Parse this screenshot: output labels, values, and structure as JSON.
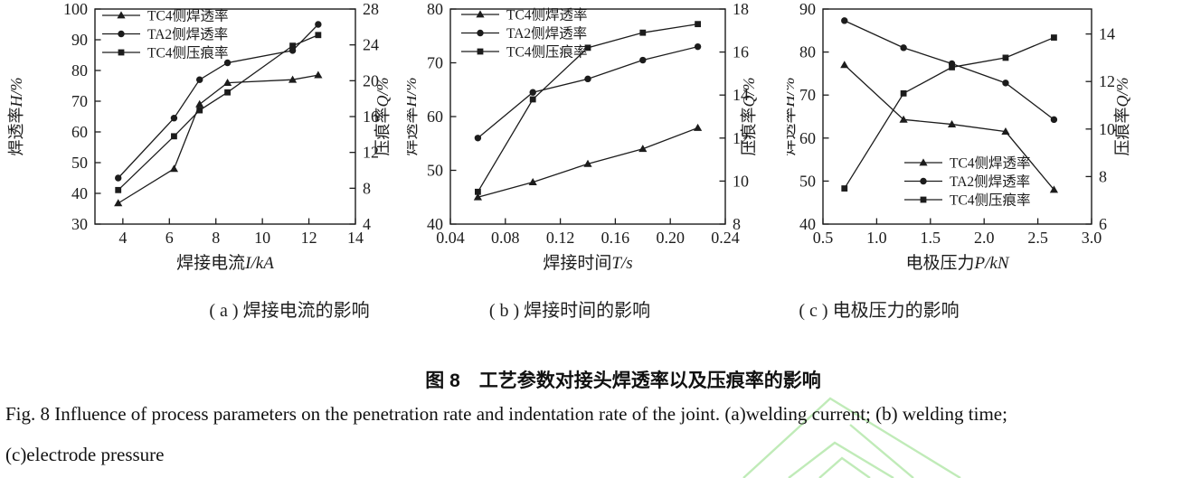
{
  "figure": {
    "subcaptions": {
      "a": "( a ) 焊接电流的影响",
      "b": "( b ) 焊接时间的影响",
      "c": "( c ) 电极压力的影响"
    },
    "title_cn": "图 8　工艺参数对接头焊透率以及压痕率的影响",
    "caption_en_line1": "Fig. 8    Influence of process parameters on the penetration rate and indentation rate of the joint. (a)welding current; (b) welding time;",
    "caption_en_line2": "(c)electrode pressure"
  },
  "ink_color": "#1c1c1c",
  "watermark": {
    "color": "#b5e8ac"
  },
  "chart_data": [
    {
      "panel": "a",
      "type": "line",
      "title": "(a) 焊接电流的影响",
      "xlabel": "焊接电流I/kA",
      "ylabel_left": "焊透率H/%",
      "ylabel_right": "压痕率Q/%",
      "xlim": [
        2.8,
        14
      ],
      "xticks": [
        4,
        6,
        8,
        10,
        12,
        14
      ],
      "xtick_labels": [
        "4",
        "6",
        "8",
        "10",
        "12",
        "14"
      ],
      "ylim_left": [
        30,
        100
      ],
      "yticks_left": [
        30,
        40,
        50,
        60,
        70,
        80,
        90,
        100
      ],
      "ylim_right": [
        4,
        28
      ],
      "yticks_right": [
        4,
        8,
        12,
        16,
        20,
        24,
        28
      ],
      "grid": false,
      "legend_position": "top-left",
      "x": [
        3.8,
        6.2,
        7.3,
        8.5,
        11.3,
        12.4
      ],
      "series": [
        {
          "name": "TC4侧焊透率",
          "marker": "triangle",
          "axis": "left",
          "values": [
            36.8,
            48,
            69,
            76,
            77,
            78.5
          ]
        },
        {
          "name": "TA2侧焊透率",
          "marker": "circle",
          "axis": "left",
          "values": [
            45,
            64.5,
            77,
            82.5,
            86.5,
            95
          ]
        },
        {
          "name": "TC4侧压痕率",
          "marker": "square",
          "axis": "right",
          "values": [
            7.8,
            13.8,
            16.7,
            18.7,
            23.9,
            25.1
          ]
        }
      ]
    },
    {
      "panel": "b",
      "type": "line",
      "title": "(b) 焊接时间的影响",
      "xlabel": "焊接时间T/s",
      "ylabel_left": "焊透率H/%",
      "ylabel_right": "压痕率Q/%",
      "xlim": [
        0.04,
        0.24
      ],
      "xticks": [
        0.04,
        0.08,
        0.12,
        0.16,
        0.2,
        0.24
      ],
      "xtick_labels": [
        "0.04",
        "0.08",
        "0.12",
        "0.16",
        "0.20",
        "0.24"
      ],
      "ylim_left": [
        40,
        80
      ],
      "yticks_left": [
        40,
        50,
        60,
        70,
        80
      ],
      "ylim_right": [
        8,
        18
      ],
      "yticks_right": [
        8,
        10,
        12,
        14,
        16,
        18
      ],
      "grid": false,
      "legend_position": "top-left",
      "x": [
        0.06,
        0.1,
        0.14,
        0.18,
        0.22
      ],
      "series": [
        {
          "name": "TC4侧焊透率",
          "marker": "triangle",
          "axis": "left",
          "values": [
            45,
            47.8,
            51.2,
            54,
            57.9
          ]
        },
        {
          "name": "TA2侧焊透率",
          "marker": "circle",
          "axis": "left",
          "values": [
            56,
            64.5,
            67,
            70.5,
            73
          ]
        },
        {
          "name": "TC4侧压痕率",
          "marker": "square",
          "axis": "right",
          "values": [
            9.5,
            13.8,
            16.2,
            16.9,
            17.3
          ]
        }
      ]
    },
    {
      "panel": "c",
      "type": "line",
      "title": "(c) 电极压力的影响",
      "xlabel": "电极压力P/kN",
      "ylabel_left": "焊透率H/%",
      "ylabel_right": "压痕率Q/%",
      "xlim": [
        0.5,
        3.0
      ],
      "xticks": [
        0.5,
        1.0,
        1.5,
        2.0,
        2.5,
        3.0
      ],
      "xtick_labels": [
        "0.5",
        "1.0",
        "1.5",
        "2.0",
        "2.5",
        "3.0"
      ],
      "ylim_left": [
        40,
        90
      ],
      "yticks_left": [
        40,
        50,
        60,
        70,
        80,
        90
      ],
      "ylim_right": [
        6,
        15.05
      ],
      "yticks_right": [
        6,
        8,
        10,
        12,
        14
      ],
      "grid": false,
      "legend_position": "inside-bottom-middle",
      "x": [
        0.7,
        1.25,
        1.7,
        2.2,
        2.65
      ],
      "series": [
        {
          "name": "TC4侧焊透率",
          "marker": "triangle",
          "axis": "left",
          "values": [
            77,
            64.3,
            63.2,
            61.5,
            48
          ]
        },
        {
          "name": "TA2侧焊透率",
          "marker": "circle",
          "axis": "left",
          "values": [
            87.3,
            81,
            77.3,
            72.8,
            64.3
          ]
        },
        {
          "name": "TC4侧压痕率",
          "marker": "square",
          "axis": "right",
          "values": [
            7.5,
            11.5,
            12.6,
            13.0,
            13.85
          ]
        }
      ]
    }
  ]
}
